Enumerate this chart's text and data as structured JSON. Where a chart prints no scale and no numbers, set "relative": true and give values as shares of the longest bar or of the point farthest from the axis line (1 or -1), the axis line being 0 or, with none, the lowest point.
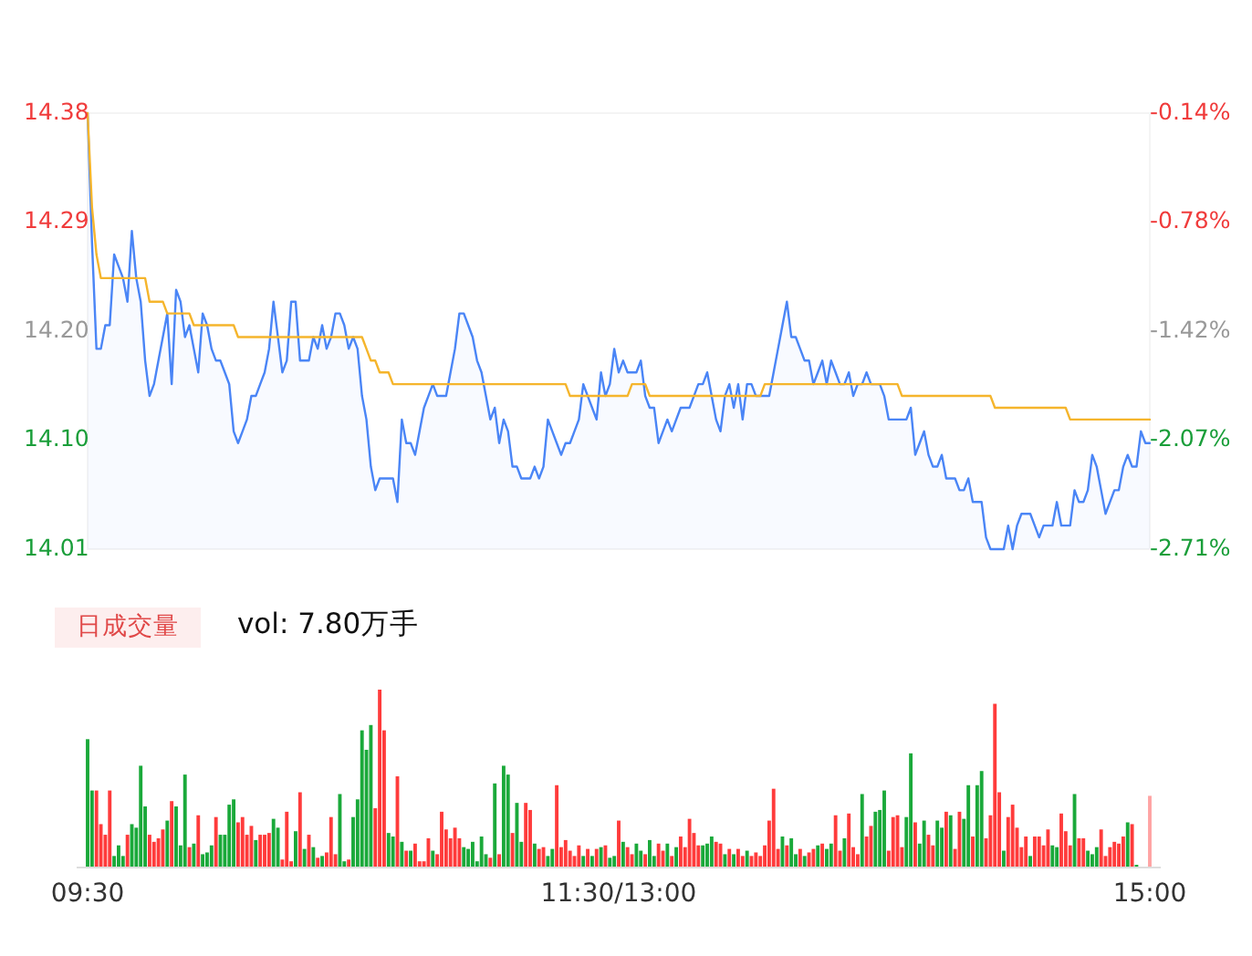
{
  "chart_data": [
    {
      "type": "line",
      "ylim": [
        14.01,
        14.38
      ],
      "yticks": [
        14.01,
        {
          "value": 14.1025,
          "label": "14.10"
        },
        {
          "value": 14.195,
          "label": "14.20"
        },
        {
          "value": 14.2875,
          "label": "14.29"
        },
        14.38
      ],
      "y2lim": [
        -2.71,
        -0.14
      ],
      "y2ticks": [
        {
          "value": -2.71,
          "label": "-2.71%"
        },
        {
          "value": -2.0675,
          "label": "-2.07%"
        },
        {
          "value": -1.425,
          "label": "-1.42%"
        },
        {
          "value": -0.7825,
          "label": "-0.78%"
        },
        {
          "value": -0.14,
          "label": "-0.14%"
        }
      ],
      "tick_labels": "y",
      "categories": [
        null,
        null,
        null,
        null,
        null,
        null,
        null,
        null,
        null,
        null,
        null,
        null,
        null,
        null,
        null,
        null,
        null,
        null,
        null,
        null,
        null,
        null,
        null,
        null,
        null,
        null,
        null,
        null,
        null,
        null,
        null,
        null,
        null,
        null,
        null,
        null,
        null,
        null,
        null,
        null,
        null,
        null,
        null,
        null,
        null,
        null,
        null,
        null,
        null,
        null,
        null,
        null,
        null,
        null,
        null,
        null,
        null,
        null,
        null,
        null,
        null,
        null,
        null,
        null,
        null,
        null,
        null,
        null,
        null,
        null,
        null,
        null,
        null,
        null,
        null,
        null,
        null,
        null,
        null,
        null,
        null,
        null,
        null,
        null,
        null,
        null,
        null,
        null,
        null,
        null,
        null,
        null,
        null,
        null,
        null,
        null,
        null,
        null,
        null,
        null,
        null,
        null,
        null,
        null,
        null,
        null,
        null,
        null,
        null,
        null,
        null,
        null,
        null,
        null,
        null,
        null,
        null,
        null,
        null,
        null,
        null,
        null,
        null,
        null,
        null,
        null,
        null,
        null,
        null,
        null,
        null,
        null,
        null,
        null,
        null,
        null,
        null,
        null,
        null,
        null,
        null,
        null,
        null,
        null,
        null,
        null,
        null,
        null,
        null,
        null,
        null,
        null,
        null,
        null,
        null,
        null,
        null,
        null,
        null,
        null,
        null,
        null,
        null,
        null,
        null,
        null,
        null,
        null,
        null,
        null,
        null,
        null,
        null,
        null,
        null,
        null,
        null,
        null,
        null,
        null,
        null,
        null,
        null,
        null,
        null,
        null,
        null,
        null,
        null,
        null,
        null,
        null,
        null,
        null,
        null,
        null,
        null,
        null,
        null,
        null,
        null,
        null,
        null,
        null,
        null,
        null,
        null,
        null,
        null,
        null,
        null,
        null,
        null,
        null,
        null,
        null,
        null,
        null,
        null,
        null,
        null,
        null,
        null,
        null,
        null,
        null,
        null,
        null,
        null,
        null,
        null,
        null,
        null,
        null,
        null,
        null,
        null,
        null,
        null,
        null,
        null
      ],
      "series": [
        {
          "type": "area",
          "color": "#4a85f6",
          "values": [
            14.38,
            14.27,
            14.18,
            14.18,
            14.2,
            14.2,
            14.26,
            14.25,
            14.24,
            14.22,
            14.28,
            14.24,
            14.22,
            14.17,
            14.14,
            14.15,
            14.17,
            14.19,
            14.21,
            14.15,
            14.23,
            14.22,
            14.19,
            14.2,
            14.18,
            14.16,
            14.21,
            14.2,
            14.18,
            14.17,
            14.17,
            14.16,
            14.15,
            14.11,
            14.1,
            14.11,
            14.12,
            14.14,
            14.14,
            14.15,
            14.16,
            14.18,
            14.22,
            14.19,
            14.16,
            14.17,
            14.22,
            14.22,
            14.17,
            14.17,
            14.17,
            14.19,
            14.18,
            14.2,
            14.18,
            14.19,
            14.21,
            14.21,
            14.2,
            14.18,
            14.19,
            14.18,
            14.14,
            14.12,
            14.08,
            14.06,
            14.07,
            14.07,
            14.07,
            14.07,
            14.05,
            14.12,
            14.1,
            14.1,
            14.09,
            14.11,
            14.13,
            14.14,
            14.15,
            14.14,
            14.14,
            14.14,
            14.16,
            14.18,
            14.21,
            14.21,
            14.2,
            14.19,
            14.17,
            14.16,
            14.14,
            14.12,
            14.13,
            14.1,
            14.12,
            14.11,
            14.08,
            14.08,
            14.07,
            14.07,
            14.07,
            14.08,
            14.07,
            14.08,
            14.12,
            14.11,
            14.1,
            14.09,
            14.1,
            14.1,
            14.11,
            14.12,
            14.15,
            14.14,
            14.13,
            14.12,
            14.16,
            14.14,
            14.15,
            14.18,
            14.16,
            14.17,
            14.16,
            14.16,
            14.16,
            14.17,
            14.14,
            14.13,
            14.13,
            14.1,
            14.11,
            14.12,
            14.11,
            14.12,
            14.13,
            14.13,
            14.13,
            14.14,
            14.15,
            14.15,
            14.16,
            14.14,
            14.12,
            14.11,
            14.14,
            14.15,
            14.13,
            14.15,
            14.12,
            14.15,
            14.15,
            14.14,
            14.14,
            14.14,
            14.14,
            14.16,
            14.18,
            14.2,
            14.22,
            14.19,
            14.19,
            14.18,
            14.17,
            14.17,
            14.15,
            14.16,
            14.17,
            14.15,
            14.17,
            14.16,
            14.15,
            14.15,
            14.16,
            14.14,
            14.15,
            14.15,
            14.16,
            14.15,
            14.15,
            14.15,
            14.14,
            14.12,
            14.12,
            14.12,
            14.12,
            14.12,
            14.13,
            14.09,
            14.1,
            14.11,
            14.09,
            14.08,
            14.08,
            14.09,
            14.07,
            14.07,
            14.07,
            14.06,
            14.06,
            14.07,
            14.05,
            14.05,
            14.05,
            14.02,
            14.01,
            14.01,
            14.01,
            14.01,
            14.03,
            14.01,
            14.03,
            14.04,
            14.04,
            14.04,
            14.03,
            14.02,
            14.03,
            14.03,
            14.03,
            14.05,
            14.03,
            14.03,
            14.03,
            14.06,
            14.05,
            14.05,
            14.06,
            14.09,
            14.08,
            14.06,
            14.04,
            14.05,
            14.06,
            14.06,
            14.08,
            14.09,
            14.08,
            14.08,
            14.11,
            14.1,
            14.1
          ]
        },
        {
          "type": "line",
          "color": "#f5b52c",
          "values": [
            14.38,
            14.3,
            14.26,
            14.24,
            14.24,
            14.24,
            14.24,
            14.24,
            14.24,
            14.24,
            14.24,
            14.24,
            14.24,
            14.24,
            14.22,
            14.22,
            14.22,
            14.22,
            14.21,
            14.21,
            14.21,
            14.21,
            14.21,
            14.21,
            14.2,
            14.2,
            14.2,
            14.2,
            14.2,
            14.2,
            14.2,
            14.2,
            14.2,
            14.2,
            14.19,
            14.19,
            14.19,
            14.19,
            14.19,
            14.19,
            14.19,
            14.19,
            14.19,
            14.19,
            14.19,
            14.19,
            14.19,
            14.19,
            14.19,
            14.19,
            14.19,
            14.19,
            14.19,
            14.19,
            14.19,
            14.19,
            14.19,
            14.19,
            14.19,
            14.19,
            14.19,
            14.19,
            14.19,
            14.18,
            14.17,
            14.17,
            14.16,
            14.16,
            14.16,
            14.15,
            14.15,
            14.15,
            14.15,
            14.15,
            14.15,
            14.15,
            14.15,
            14.15,
            14.15,
            14.15,
            14.15,
            14.15,
            14.15,
            14.15,
            14.15,
            14.15,
            14.15,
            14.15,
            14.15,
            14.15,
            14.15,
            14.15,
            14.15,
            14.15,
            14.15,
            14.15,
            14.15,
            14.15,
            14.15,
            14.15,
            14.15,
            14.15,
            14.15,
            14.15,
            14.15,
            14.15,
            14.15,
            14.15,
            14.15,
            14.14,
            14.14,
            14.14,
            14.14,
            14.14,
            14.14,
            14.14,
            14.14,
            14.14,
            14.14,
            14.14,
            14.14,
            14.14,
            14.14,
            14.15,
            14.15,
            14.15,
            14.15,
            14.14,
            14.14,
            14.14,
            14.14,
            14.14,
            14.14,
            14.14,
            14.14,
            14.14,
            14.14,
            14.14,
            14.14,
            14.14,
            14.14,
            14.14,
            14.14,
            14.14,
            14.14,
            14.14,
            14.14,
            14.14,
            14.14,
            14.14,
            14.14,
            14.14,
            14.14,
            14.15,
            14.15,
            14.15,
            14.15,
            14.15,
            14.15,
            14.15,
            14.15,
            14.15,
            14.15,
            14.15,
            14.15,
            14.15,
            14.15,
            14.15,
            14.15,
            14.15,
            14.15,
            14.15,
            14.15,
            14.15,
            14.15,
            14.15,
            14.15,
            14.15,
            14.15,
            14.15,
            14.15,
            14.15,
            14.15,
            14.15,
            14.14,
            14.14,
            14.14,
            14.14,
            14.14,
            14.14,
            14.14,
            14.14,
            14.14,
            14.14,
            14.14,
            14.14,
            14.14,
            14.14,
            14.14,
            14.14,
            14.14,
            14.14,
            14.14,
            14.14,
            14.14,
            14.13,
            14.13,
            14.13,
            14.13,
            14.13,
            14.13,
            14.13,
            14.13,
            14.13,
            14.13,
            14.13,
            14.13,
            14.13,
            14.13,
            14.13,
            14.13,
            14.13,
            14.12,
            14.12,
            14.12,
            14.12,
            14.12,
            14.12,
            14.12,
            14.12,
            14.12,
            14.12,
            14.12,
            14.12,
            14.12,
            14.12,
            14.12,
            14.12,
            14.12,
            14.12,
            14.12
          ]
        }
      ]
    },
    {
      "type": "bar",
      "relative": true,
      "annotations": [
        "日成交量",
        "vol: 7.80万手"
      ],
      "categories": [
        "09:30",
        null,
        null,
        null,
        null,
        null,
        null,
        null,
        null,
        null,
        null,
        null,
        null,
        null,
        null,
        null,
        null,
        null,
        null,
        null,
        null,
        null,
        null,
        null,
        null,
        null,
        null,
        null,
        null,
        null,
        null,
        null,
        null,
        null,
        null,
        null,
        null,
        null,
        null,
        null,
        null,
        null,
        null,
        null,
        null,
        null,
        null,
        null,
        null,
        null,
        null,
        null,
        null,
        null,
        null,
        null,
        null,
        null,
        null,
        null,
        null,
        null,
        null,
        null,
        null,
        null,
        null,
        null,
        null,
        null,
        null,
        null,
        null,
        null,
        null,
        null,
        null,
        null,
        null,
        null,
        null,
        null,
        null,
        null,
        null,
        null,
        null,
        null,
        null,
        null,
        null,
        null,
        null,
        null,
        null,
        null,
        null,
        null,
        null,
        null,
        null,
        null,
        null,
        null,
        null,
        null,
        null,
        null,
        null,
        null,
        null,
        null,
        null,
        null,
        null,
        null,
        null,
        null,
        null,
        null,
        "11:30/13:00",
        null,
        null,
        null,
        null,
        null,
        null,
        null,
        null,
        null,
        null,
        null,
        null,
        null,
        null,
        null,
        null,
        null,
        null,
        null,
        null,
        null,
        null,
        null,
        null,
        null,
        null,
        null,
        null,
        null,
        null,
        null,
        null,
        null,
        null,
        null,
        null,
        null,
        null,
        null,
        null,
        null,
        null,
        null,
        null,
        null,
        null,
        null,
        null,
        null,
        null,
        null,
        null,
        null,
        null,
        null,
        null,
        null,
        null,
        null,
        null,
        null,
        null,
        null,
        null,
        null,
        null,
        null,
        null,
        null,
        null,
        null,
        null,
        null,
        null,
        null,
        null,
        null,
        null,
        null,
        null,
        null,
        null,
        null,
        null,
        null,
        null,
        null,
        null,
        null,
        null,
        null,
        null,
        null,
        null,
        null,
        null,
        null,
        null,
        null,
        null,
        null,
        null,
        null,
        null,
        null,
        null,
        null,
        null,
        null,
        null,
        null,
        null,
        null,
        null,
        null,
        null,
        null,
        null,
        null,
        "15:00"
      ],
      "values": [
        0.72,
        0.43,
        0.43,
        0.24,
        0.18,
        0.43,
        0.06,
        0.12,
        0.06,
        0.18,
        0.24,
        0.22,
        0.57,
        0.34,
        0.18,
        0.14,
        0.16,
        0.21,
        0.26,
        0.37,
        0.34,
        0.12,
        0.52,
        0.11,
        0.13,
        0.29,
        0.07,
        0.08,
        0.12,
        0.28,
        0.18,
        0.18,
        0.35,
        0.38,
        0.25,
        0.28,
        0.18,
        0.23,
        0.15,
        0.18,
        0.18,
        0.19,
        0.27,
        0.22,
        0.04,
        0.31,
        0.03,
        0.2,
        0.42,
        0.1,
        0.18,
        0.11,
        0.05,
        0.06,
        0.08,
        0.28,
        0.07,
        0.41,
        0.03,
        0.04,
        0.28,
        0.38,
        0.77,
        0.66,
        0.8,
        0.33,
        1,
        0.77,
        0.19,
        0.17,
        0.51,
        0.14,
        0.09,
        0.09,
        0.13,
        0.03,
        0.03,
        0.16,
        0.09,
        0.07,
        0.31,
        0.21,
        0.16,
        0.22,
        0.16,
        0.11,
        0.1,
        0.14,
        0.03,
        0.17,
        0.07,
        0.05,
        0.47,
        0.07,
        0.57,
        0.52,
        0.19,
        0.36,
        0.14,
        0.36,
        0.32,
        0.13,
        0.1,
        0.11,
        0.06,
        0.1,
        0.46,
        0.11,
        0.15,
        0.09,
        0.06,
        0.12,
        0.06,
        0.1,
        0.06,
        0.1,
        0.11,
        0.12,
        0.05,
        0.06,
        0.26,
        0.14,
        0.11,
        0.07,
        0.13,
        0.09,
        0.07,
        0.15,
        0.06,
        0.13,
        0.09,
        0.13,
        0.06,
        0.11,
        0.17,
        0.11,
        0.27,
        0.19,
        0.12,
        0.12,
        0.13,
        0.17,
        0.14,
        0.13,
        0.07,
        0.1,
        0.07,
        0.1,
        0.06,
        0.09,
        0.06,
        0.08,
        0.06,
        0.12,
        0.26,
        0.44,
        0.1,
        0.17,
        0.12,
        0.16,
        0.07,
        0.1,
        0.06,
        0.08,
        0.1,
        0.12,
        0.13,
        0.1,
        0.13,
        0.29,
        0.09,
        0.16,
        0.3,
        0.11,
        0.07,
        0.41,
        0.17,
        0.23,
        0.31,
        0.32,
        0.43,
        0.09,
        0.28,
        0.29,
        0.11,
        0.28,
        0.64,
        0.25,
        0.13,
        0.26,
        0.18,
        0.12,
        0.26,
        0.22,
        0.31,
        0.29,
        0.1,
        0.31,
        0.27,
        0.46,
        0.17,
        0.46,
        0.54,
        0.16,
        0.29,
        0.92,
        0.42,
        0.09,
        0.28,
        0.35,
        0.22,
        0.11,
        0.17,
        0.06,
        0.17,
        0.17,
        0.12,
        0.21,
        0.12,
        0.11,
        0.3,
        0.2,
        0.12,
        0.41,
        0.16,
        0.16,
        0.09,
        0.07,
        0.11,
        0.21,
        0.06,
        0.11,
        0.14,
        0.13,
        0.17,
        0.25,
        0.24,
        0.01,
        null,
        null,
        0.4
      ],
      "colors": [
        "#1aa93a",
        "#1aa93a",
        "#ff3b3b",
        "#ff3b3b",
        "#ff3b3b",
        "#ff3b3b",
        "#1aa93a",
        "#1aa93a",
        "#1aa93a",
        "#ff3b3b",
        "#1aa93a",
        "#1aa93a",
        "#1aa93a",
        "#1aa93a",
        "#ff3b3b",
        "#ff3b3b",
        "#ff3b3b",
        "#ff3b3b",
        "#1aa93a",
        "#ff3b3b",
        "#1aa93a",
        "#1aa93a",
        "#1aa93a",
        "#ff3b3b",
        "#1aa93a",
        "#ff3b3b",
        "#1aa93a",
        "#1aa93a",
        "#1aa93a",
        "#ff3b3b",
        "#1aa93a",
        "#1aa93a",
        "#1aa93a",
        "#1aa93a",
        "#ff3b3b",
        "#ff3b3b",
        "#ff3b3b",
        "#ff3b3b",
        "#1aa93a",
        "#ff3b3b",
        "#ff3b3b",
        "#ff3b3b",
        "#1aa93a",
        "#1aa93a",
        "#ff3b3b",
        "#ff3b3b",
        "#ff3b3b",
        "#1aa93a",
        "#ff3b3b",
        "#1aa93a",
        "#ff3b3b",
        "#1aa93a",
        "#ff3b3b",
        "#1aa93a",
        "#ff3b3b",
        "#ff3b3b",
        "#ff3b3b",
        "#1aa93a",
        "#1aa93a",
        "#ff3b3b",
        "#1aa93a",
        "#1aa93a",
        "#1aa93a",
        "#1aa93a",
        "#1aa93a",
        "#ff3b3b",
        "#ff3b3b",
        "#ff3b3b",
        "#1aa93a",
        "#1aa93a",
        "#ff3b3b",
        "#1aa93a",
        "#ff3b3b",
        "#1aa93a",
        "#ff3b3b",
        "#ff3b3b",
        "#ff3b3b",
        "#ff3b3b",
        "#1aa93a",
        "#ff3b3b",
        "#ff3b3b",
        "#ff3b3b",
        "#ff3b3b",
        "#ff3b3b",
        "#ff3b3b",
        "#1aa93a",
        "#1aa93a",
        "#1aa93a",
        "#1aa93a",
        "#1aa93a",
        "#1aa93a",
        "#ff3b3b",
        "#1aa93a",
        "#ff3b3b",
        "#1aa93a",
        "#1aa93a",
        "#ff3b3b",
        "#1aa93a",
        "#1aa93a",
        "#ff3b3b",
        "#ff3b3b",
        "#1aa93a",
        "#ff3b3b",
        "#ff3b3b",
        "#1aa93a",
        "#1aa93a",
        "#ff3b3b",
        "#ff3b3b",
        "#ff3b3b",
        "#ff3b3b",
        "#ff3b3b",
        "#ff3b3b",
        "#1aa93a",
        "#ff3b3b",
        "#1aa93a",
        "#ff3b3b",
        "#1aa93a",
        "#ff3b3b",
        "#1aa93a",
        "#1aa93a",
        "#ff3b3b",
        "#1aa93a",
        "#ff3b3b",
        "#ff3b3b",
        "#1aa93a",
        "#1aa93a",
        "#ff3b3b",
        "#1aa93a",
        "#1aa93a",
        "#ff3b3b",
        "#ff3b3b",
        "#1aa93a",
        "#ff3b3b",
        "#1aa93a",
        "#ff3b3b",
        "#ff3b3b",
        "#ff3b3b",
        "#ff3b3b",
        "#ff3b3b",
        "#1aa93a",
        "#1aa93a",
        "#1aa93a",
        "#ff3b3b",
        "#ff3b3b",
        "#1aa93a",
        "#ff3b3b",
        "#1aa93a",
        "#ff3b3b",
        "#ff3b3b",
        "#1aa93a",
        "#ff3b3b",
        "#ff3b3b",
        "#ff3b3b",
        "#ff3b3b",
        "#ff3b3b",
        "#ff3b3b",
        "#ff3b3b",
        "#1aa93a",
        "#ff3b3b",
        "#1aa93a",
        "#1aa93a",
        "#ff3b3b",
        "#1aa93a",
        "#ff3b3b",
        "#ff3b3b",
        "#1aa93a",
        "#ff3b3b",
        "#1aa93a",
        "#1aa93a",
        "#ff3b3b",
        "#ff3b3b",
        "#1aa93a",
        "#ff3b3b",
        "#ff3b3b",
        "#ff3b3b",
        "#1aa93a",
        "#ff3b3b",
        "#ff3b3b",
        "#1aa93a",
        "#1aa93a",
        "#1aa93a",
        "#ff3b3b",
        "#ff3b3b",
        "#ff3b3b",
        "#ff3b3b",
        "#1aa93a",
        "#1aa93a",
        "#ff3b3b",
        "#1aa93a",
        "#1aa93a",
        "#ff3b3b",
        "#ff3b3b",
        "#1aa93a",
        "#1aa93a",
        "#ff3b3b",
        "#1aa93a",
        "#ff3b3b",
        "#ff3b3b",
        "#1aa93a",
        "#1aa93a",
        "#ff3b3b",
        "#1aa93a",
        "#1aa93a",
        "#ff3b3b",
        "#ff3b3b",
        "#ff3b3b",
        "#ff3b3b",
        "#1aa93a",
        "#ff3b3b",
        "#ff3b3b",
        "#ff3b3b",
        "#ff3b3b",
        "#ff3b3b",
        "#1aa93a",
        "#ff3b3b",
        "#ff3b3b",
        "#ff3b3b",
        "#ff3b3b",
        "#1aa93a",
        "#1aa93a",
        "#ff3b3b",
        "#ff3b3b",
        "#ff3b3b",
        "#1aa93a",
        "#ff3b3b",
        "#ff3b3b",
        "#1aa93a",
        "#1aa93a",
        "#1aa93a",
        "#ff3b3b",
        "#ff3b3b",
        "#ff3b3b",
        "#ff3b3b",
        "#ff3b3b",
        "#ff3b3b",
        "#1aa93a",
        "#ff3b3b",
        "#1aa93a",
        null,
        null,
        "#ffa3a3"
      ]
    }
  ]
}
